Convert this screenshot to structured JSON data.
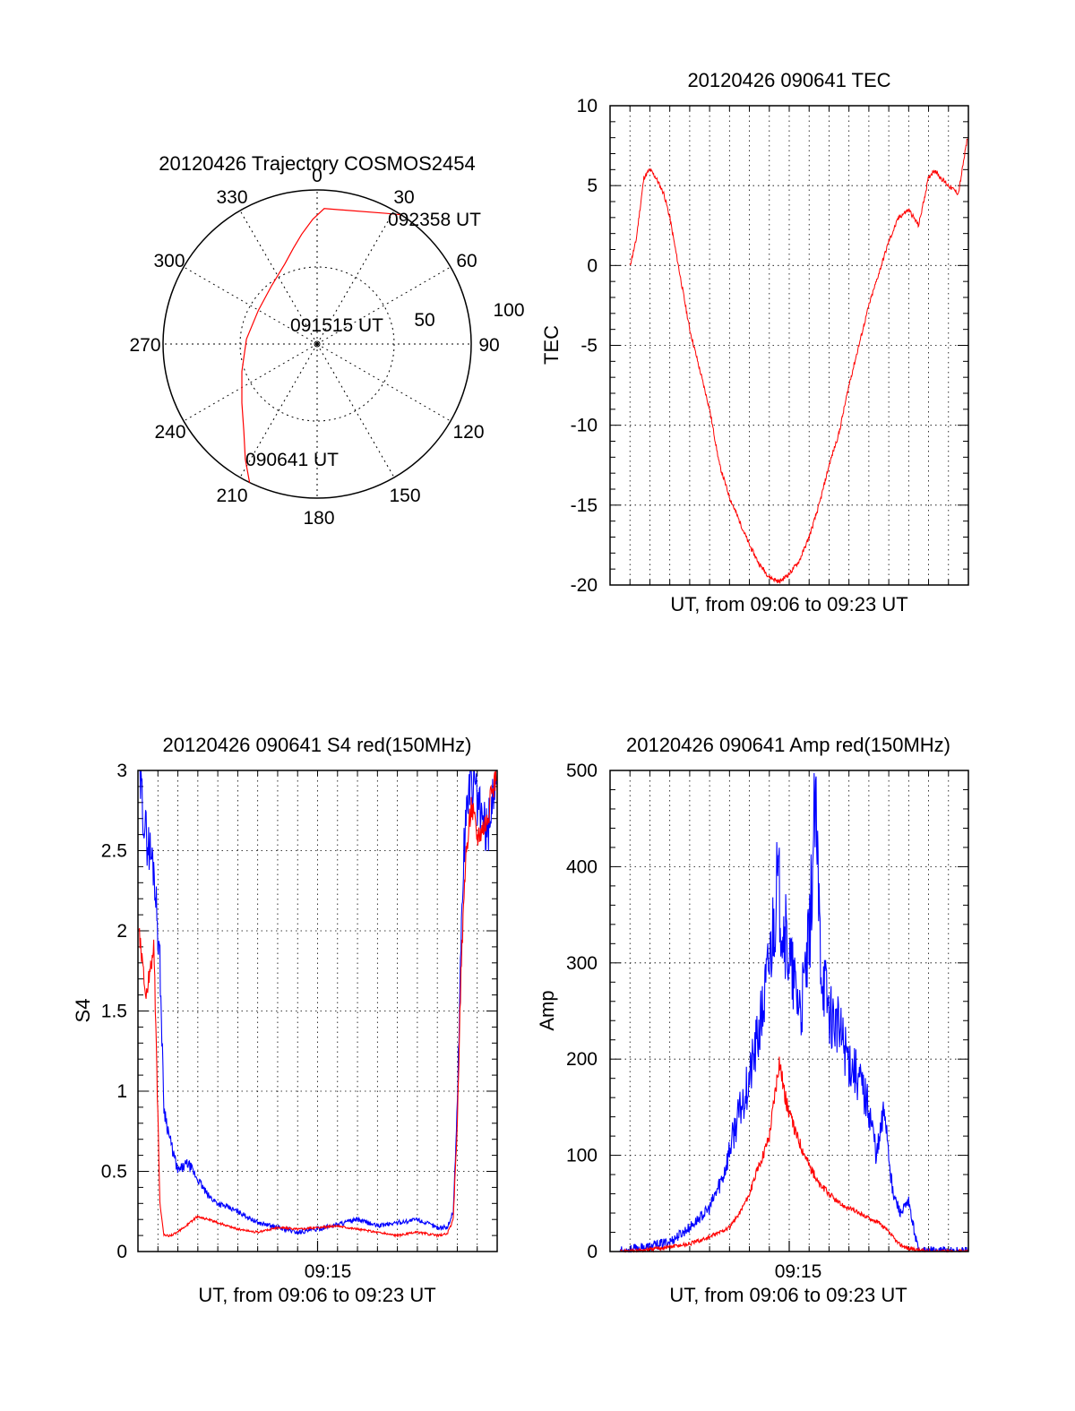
{
  "colors": {
    "red": "#ff0000",
    "blue": "#0000ff",
    "axis": "#000000",
    "grid": "#000000"
  },
  "chart_data": [
    {
      "id": "trajectory",
      "type": "polar",
      "title": "20120426 Trajectory COSMOS2454",
      "azimuth_labels": [
        "0",
        "30",
        "60",
        "90",
        "120",
        "150",
        "180",
        "210",
        "240",
        "270",
        "300",
        "330"
      ],
      "ring_labels": [
        "50",
        "100"
      ],
      "rlim": [
        0,
        100
      ],
      "point_labels": [
        "092358 UT",
        "091515 UT",
        "090641 UT"
      ],
      "track": {
        "color": "#ff0000",
        "points": [
          [
            206,
            100
          ],
          [
            212,
            88
          ],
          [
            220,
            74
          ],
          [
            232,
            62
          ],
          [
            250,
            52
          ],
          [
            274,
            46
          ],
          [
            300,
            44
          ],
          [
            322,
            48
          ],
          [
            338,
            56
          ],
          [
            346,
            64
          ],
          [
            352,
            72
          ],
          [
            358,
            81
          ],
          [
            3,
            88
          ],
          [
            28,
            96
          ],
          [
            33,
            100
          ]
        ]
      },
      "grid": true
    },
    {
      "id": "tec",
      "type": "line",
      "title": "20120426 090641 TEC",
      "xlabel": "UT, from 09:06 to 09:23 UT",
      "ylabel": "TEC",
      "xlim": [
        546,
        564
      ],
      "ylim": [
        -20,
        10
      ],
      "yticks": [
        "10",
        "5",
        "0",
        "-5",
        "-10",
        "-15",
        "-20"
      ],
      "grid": true,
      "series": [
        {
          "color": "#ff0000",
          "x": [
            547,
            547.3,
            547.7,
            548.0,
            548.3,
            548.7,
            549.0,
            549.5,
            550.0,
            550.5,
            551.0,
            551.5,
            552.0,
            552.5,
            553.0,
            553.5,
            554.0,
            554.5,
            555.0,
            555.5,
            556.0,
            556.5,
            557.0,
            557.5,
            558.0,
            558.5,
            559.0,
            559.5,
            560.0,
            560.5,
            561.0,
            561.5,
            562.0,
            562.3,
            562.6,
            563.0,
            563.5,
            563.95
          ],
          "y": [
            0,
            1.5,
            5.5,
            6.0,
            5.5,
            4.5,
            3.0,
            -0.5,
            -4.0,
            -6.5,
            -9.0,
            -12.5,
            -14.5,
            -16.0,
            -17.5,
            -18.7,
            -19.5,
            -19.8,
            -19.3,
            -18.5,
            -17.0,
            -15.0,
            -12.5,
            -10.5,
            -7.5,
            -5.0,
            -2.5,
            -0.5,
            1.5,
            3.0,
            3.5,
            2.5,
            5.5,
            6.0,
            5.5,
            5.0,
            4.5,
            8.0
          ]
        }
      ]
    },
    {
      "id": "s4",
      "type": "line",
      "title": "20120426 090641 S4 red(150MHz)",
      "xlabel": "UT, from 09:06 to 09:23 UT",
      "ylabel": "S4",
      "xlim": [
        546,
        564
      ],
      "ylim": [
        0,
        3
      ],
      "xtick_label": "09:15",
      "yticks": [
        "3",
        "2.5",
        "2",
        "1.5",
        "1",
        "0.5",
        "0"
      ],
      "grid": true,
      "series": [
        {
          "color": "#0000ff",
          "x": [
            546.05,
            546.4,
            546.8,
            547.1,
            547.3,
            547.6,
            548.0,
            548.5,
            549.0,
            549.5,
            550.0,
            551.0,
            552.0,
            553.0,
            554.0,
            555.0,
            556.0,
            557.0,
            558.0,
            559.0,
            560.0,
            561.0,
            561.5,
            561.8,
            562.0,
            562.2,
            562.4,
            562.7,
            563.0,
            563.5,
            563.95
          ],
          "y": [
            3.0,
            2.6,
            2.4,
            1.8,
            0.9,
            0.7,
            0.5,
            0.55,
            0.45,
            0.35,
            0.3,
            0.25,
            0.18,
            0.15,
            0.12,
            0.14,
            0.17,
            0.2,
            0.16,
            0.18,
            0.2,
            0.15,
            0.15,
            0.25,
            0.9,
            2.0,
            2.7,
            3.0,
            2.8,
            2.6,
            3.0
          ]
        },
        {
          "color": "#ff0000",
          "x": [
            546.05,
            546.4,
            546.8,
            547.1,
            547.3,
            547.6,
            548.0,
            549.0,
            550.0,
            551.0,
            552.0,
            553.0,
            554.0,
            555.0,
            556.0,
            557.0,
            558.0,
            559.0,
            560.0,
            561.0,
            561.5,
            561.8,
            562.0,
            562.2,
            562.4,
            562.7,
            563.0,
            563.5,
            563.95
          ],
          "y": [
            2.0,
            1.6,
            1.9,
            0.3,
            0.1,
            0.1,
            0.12,
            0.22,
            0.18,
            0.14,
            0.12,
            0.15,
            0.14,
            0.15,
            0.16,
            0.14,
            0.12,
            0.1,
            0.12,
            0.1,
            0.11,
            0.2,
            0.8,
            1.8,
            2.4,
            2.8,
            2.6,
            2.7,
            3.0
          ]
        }
      ]
    },
    {
      "id": "amp",
      "type": "line",
      "title": "20120426 090641 Amp red(150MHz)",
      "xlabel": "UT, from 09:06 to 09:23 UT",
      "ylabel": "Amp",
      "xlim": [
        546,
        564
      ],
      "ylim": [
        0,
        500
      ],
      "xtick_label": "09:15",
      "yticks": [
        "500",
        "400",
        "300",
        "200",
        "100",
        "0"
      ],
      "grid": true,
      "series": [
        {
          "color": "#0000ff",
          "x": [
            546.5,
            548.0,
            549.0,
            550.0,
            551.0,
            551.7,
            552.3,
            553.0,
            553.6,
            554.0,
            554.4,
            554.8,
            555.2,
            555.6,
            556.0,
            556.3,
            556.6,
            557.0,
            557.5,
            558.0,
            558.5,
            559.0,
            559.4,
            559.8,
            560.2,
            560.6,
            561.0,
            561.5,
            562.0,
            563.0,
            564.0
          ],
          "y": [
            0,
            5,
            10,
            25,
            45,
            80,
            130,
            180,
            240,
            300,
            380,
            330,
            280,
            250,
            320,
            460,
            300,
            250,
            230,
            200,
            180,
            150,
            100,
            150,
            60,
            40,
            50,
            0,
            0,
            0,
            0
          ]
        },
        {
          "color": "#ff0000",
          "x": [
            546.5,
            548.0,
            549.0,
            550.0,
            551.0,
            552.0,
            552.5,
            553.0,
            553.5,
            554.0,
            554.5,
            554.8,
            555.2,
            555.6,
            556.0,
            556.5,
            557.0,
            557.5,
            558.0,
            558.5,
            559.0,
            559.5,
            560.0,
            560.5,
            561.0,
            562.0,
            564.0
          ],
          "y": [
            0,
            2,
            5,
            8,
            15,
            25,
            40,
            60,
            90,
            120,
            200,
            160,
            130,
            110,
            90,
            70,
            60,
            50,
            45,
            40,
            35,
            30,
            20,
            8,
            3,
            0,
            0
          ]
        }
      ]
    }
  ]
}
